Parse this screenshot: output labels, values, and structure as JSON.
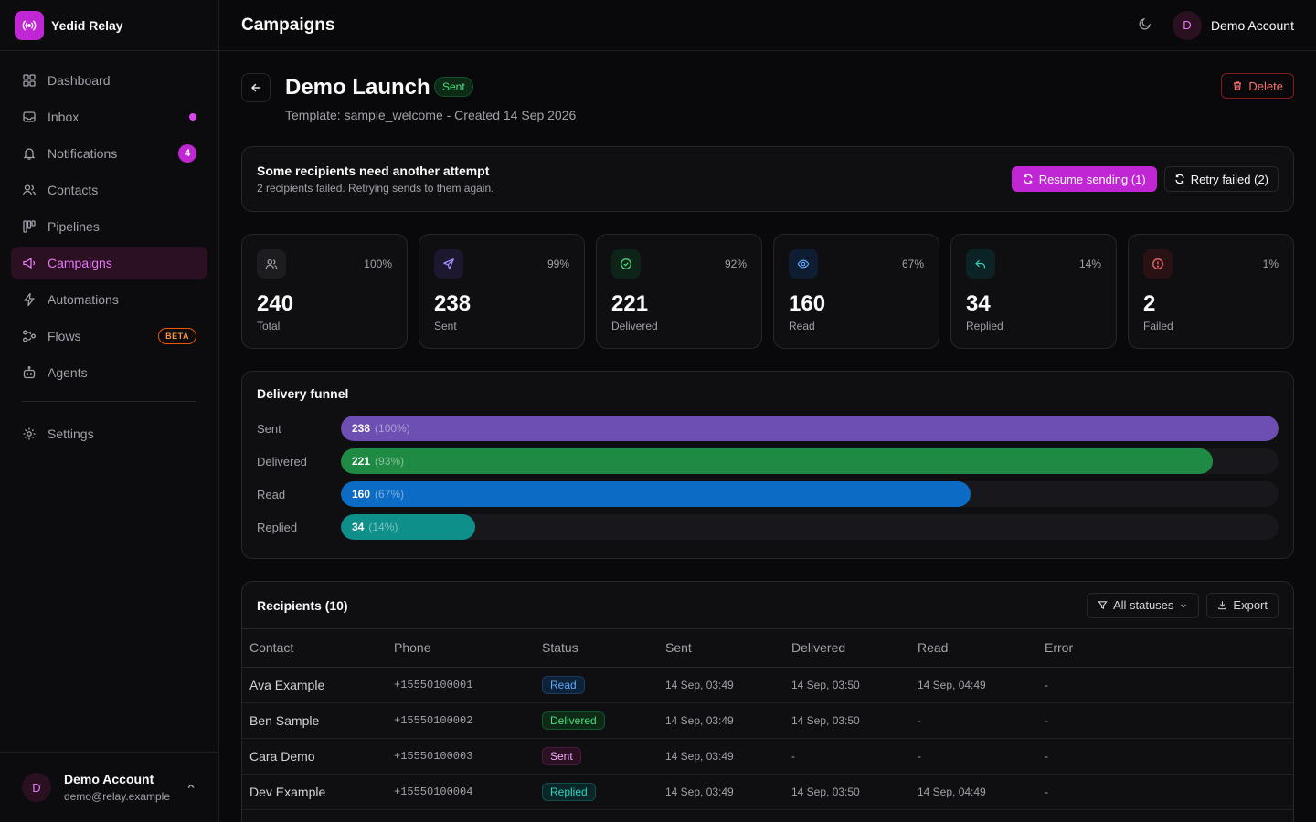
{
  "brand": {
    "name": "Yedid Relay"
  },
  "sidebar": {
    "items": [
      {
        "label": "Dashboard"
      },
      {
        "label": "Inbox"
      },
      {
        "label": "Notifications",
        "badge": "4"
      },
      {
        "label": "Contacts"
      },
      {
        "label": "Pipelines"
      },
      {
        "label": "Campaigns"
      },
      {
        "label": "Automations"
      },
      {
        "label": "Flows",
        "tag": "BETA"
      },
      {
        "label": "Agents"
      }
    ],
    "settings_label": "Settings",
    "footer": {
      "initial": "D",
      "name": "Demo Account",
      "email": "demo@relay.example"
    }
  },
  "topbar": {
    "title": "Campaigns",
    "user_initial": "D",
    "user_name": "Demo Account"
  },
  "campaign": {
    "name": "Demo Launch",
    "status": "Sent",
    "subtitle": "Template: sample_welcome - Created 14 Sep 2026",
    "delete_label": "Delete"
  },
  "alert": {
    "title": "Some recipients need another attempt",
    "subtitle": "2 recipients failed. Retrying sends to them again.",
    "resume_label": "Resume sending (1)",
    "retry_label": "Retry failed (2)"
  },
  "stats": [
    {
      "value": "240",
      "label": "Total",
      "pct": "100%",
      "icon": "users-icon",
      "color": "#a1a1aa",
      "bg": "#1c1c21"
    },
    {
      "value": "238",
      "label": "Sent",
      "pct": "99%",
      "icon": "send-icon",
      "color": "#a78bfa",
      "bg": "#1d1830"
    },
    {
      "value": "221",
      "label": "Delivered",
      "pct": "92%",
      "icon": "check-circle-icon",
      "color": "#4ade80",
      "bg": "#0f2418"
    },
    {
      "value": "160",
      "label": "Read",
      "pct": "67%",
      "icon": "eye-icon",
      "color": "#60a5fa",
      "bg": "#0f1d33"
    },
    {
      "value": "34",
      "label": "Replied",
      "pct": "14%",
      "icon": "reply-icon",
      "color": "#2dd4bf",
      "bg": "#0b2325"
    },
    {
      "value": "2",
      "label": "Failed",
      "pct": "1%",
      "icon": "alert-circle-icon",
      "color": "#f87171",
      "bg": "#2a1214"
    }
  ],
  "funnel": {
    "title": "Delivery funnel",
    "rows": [
      {
        "label": "Sent",
        "value": "238",
        "pct_text": "(100%)",
        "fraction": 1.0,
        "color": "#6d4fb3"
      },
      {
        "label": "Delivered",
        "value": "221",
        "pct_text": "(93%)",
        "fraction": 0.93,
        "color": "#1f8a43"
      },
      {
        "label": "Read",
        "value": "160",
        "pct_text": "(67%)",
        "fraction": 0.672,
        "color": "#0c6bc4"
      },
      {
        "label": "Replied",
        "value": "34",
        "pct_text": "(14%)",
        "fraction": 0.143,
        "color": "#0f8f8a"
      }
    ]
  },
  "recipients": {
    "title": "Recipients (10)",
    "filter_label": "All statuses",
    "export_label": "Export",
    "columns": [
      "Contact",
      "Phone",
      "Status",
      "Sent",
      "Delivered",
      "Read",
      "Error"
    ],
    "rows": [
      {
        "contact": "Ava Example",
        "phone": "+15550100001",
        "status": "Read",
        "sent": "14 Sep, 03:49",
        "delivered": "14 Sep, 03:50",
        "read": "14 Sep, 04:49",
        "error": "-"
      },
      {
        "contact": "Ben Sample",
        "phone": "+15550100002",
        "status": "Delivered",
        "sent": "14 Sep, 03:49",
        "delivered": "14 Sep, 03:50",
        "read": "-",
        "error": "-"
      },
      {
        "contact": "Cara Demo",
        "phone": "+15550100003",
        "status": "Sent",
        "sent": "14 Sep, 03:49",
        "delivered": "-",
        "read": "-",
        "error": "-"
      },
      {
        "contact": "Dev Example",
        "phone": "+15550100004",
        "status": "Replied",
        "sent": "14 Sep, 03:49",
        "delivered": "14 Sep, 03:50",
        "read": "14 Sep, 04:49",
        "error": "-"
      }
    ]
  }
}
